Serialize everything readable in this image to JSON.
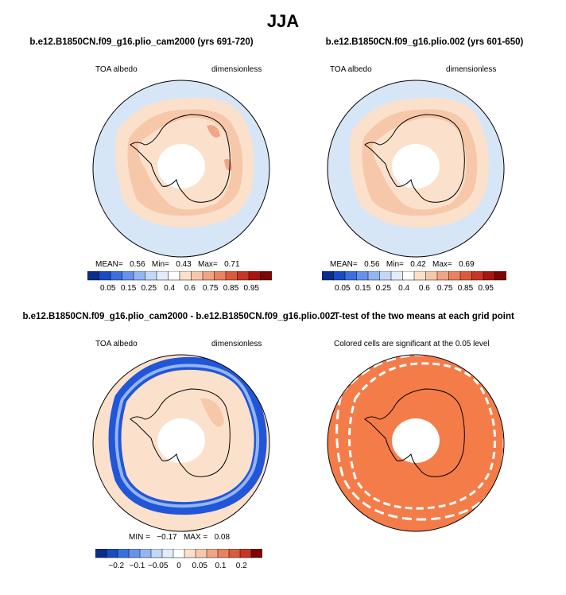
{
  "title": "JJA",
  "colors": {
    "ocean_low": "#d6e6f7",
    "ice_edge": "#fbe1cb",
    "mid_ring": "#f7c7aa",
    "continent": "#fbe1cb",
    "hot_spot": "#f2a484",
    "pole_hole": "#ffffff",
    "sig": "#f47c48",
    "coast": "#000000"
  },
  "panels": [
    {
      "title": "b.e12.B1850CN.f09_g16.plio_cam2000 (yrs 691-720)",
      "left_label": "TOA albedo",
      "right_label": "dimensionless",
      "stats": {
        "mean_label": "MEAN=",
        "mean": "0.56",
        "min_label": "Min=",
        "min": "0.43",
        "max_label": "Max=",
        "max": "0.71"
      }
    },
    {
      "title": "b.e12.B1850CN.f09_g16.plio.002 (yrs 601-650)",
      "left_label": "TOA albedo",
      "right_label": "dimensionless",
      "stats": {
        "mean_label": "MEAN=",
        "mean": "0.56",
        "min_label": "Min=",
        "min": "0.42",
        "max_label": "Max=",
        "max": "0.69"
      }
    },
    {
      "title": "b.e12.B1850CN.f09_g16.plio_cam2000 - b.e12.B1850CN.f09_g16.plio.002",
      "left_label": "TOA albedo",
      "right_label": "dimensionless",
      "stats": {
        "min_label": "MIN =",
        "min": "−0.17",
        "max_label": "MAX =",
        "max": "0.08"
      }
    },
    {
      "title": "T-test of the two means at each grid point",
      "subtitle": "Colored cells are significant at the 0.05 level"
    }
  ],
  "chart_data": [
    {
      "type": "heatmap",
      "projection": "south-polar stereographic",
      "colorbar": {
        "tick_labels": [
          "0.05",
          "0.15",
          "0.25",
          "0.4",
          "0.6",
          "0.75",
          "0.85",
          "0.95"
        ],
        "colors": [
          "#0a2d8c",
          "#1a4bc4",
          "#3a6fe0",
          "#6692ec",
          "#93b6f2",
          "#c3d8f6",
          "#e2ecfa",
          "#ffffff",
          "#fbe1cb",
          "#f7c7aa",
          "#f2a484",
          "#ea8260",
          "#dc5a3c",
          "#c73624",
          "#a81510",
          "#7a0606"
        ]
      }
    },
    {
      "type": "heatmap",
      "projection": "south-polar stereographic",
      "colorbar": {
        "tick_labels": [
          "0.05",
          "0.15",
          "0.25",
          "0.4",
          "0.6",
          "0.75",
          "0.85",
          "0.95"
        ],
        "colors": [
          "#0a2d8c",
          "#1a4bc4",
          "#3a6fe0",
          "#6692ec",
          "#93b6f2",
          "#c3d8f6",
          "#e2ecfa",
          "#ffffff",
          "#fbe1cb",
          "#f7c7aa",
          "#f2a484",
          "#ea8260",
          "#dc5a3c",
          "#c73624",
          "#a81510",
          "#7a0606"
        ]
      }
    },
    {
      "type": "heatmap",
      "projection": "south-polar stereographic",
      "colorbar": {
        "tick_labels": [
          "−0.2",
          "−0.1",
          "−0.05",
          "0",
          "0.05",
          "0.1",
          "0.2"
        ],
        "colors": [
          "#0a2d8c",
          "#1a4bc4",
          "#3a6fe0",
          "#6692ec",
          "#93b6f2",
          "#c3d8f6",
          "#e2ecfa",
          "#ffffff",
          "#fbe1cb",
          "#f7c7aa",
          "#f2a484",
          "#ea8260",
          "#dc5a3c",
          "#c73624",
          "#7a0606"
        ]
      }
    },
    {
      "type": "heatmap",
      "projection": "south-polar stereographic"
    }
  ]
}
